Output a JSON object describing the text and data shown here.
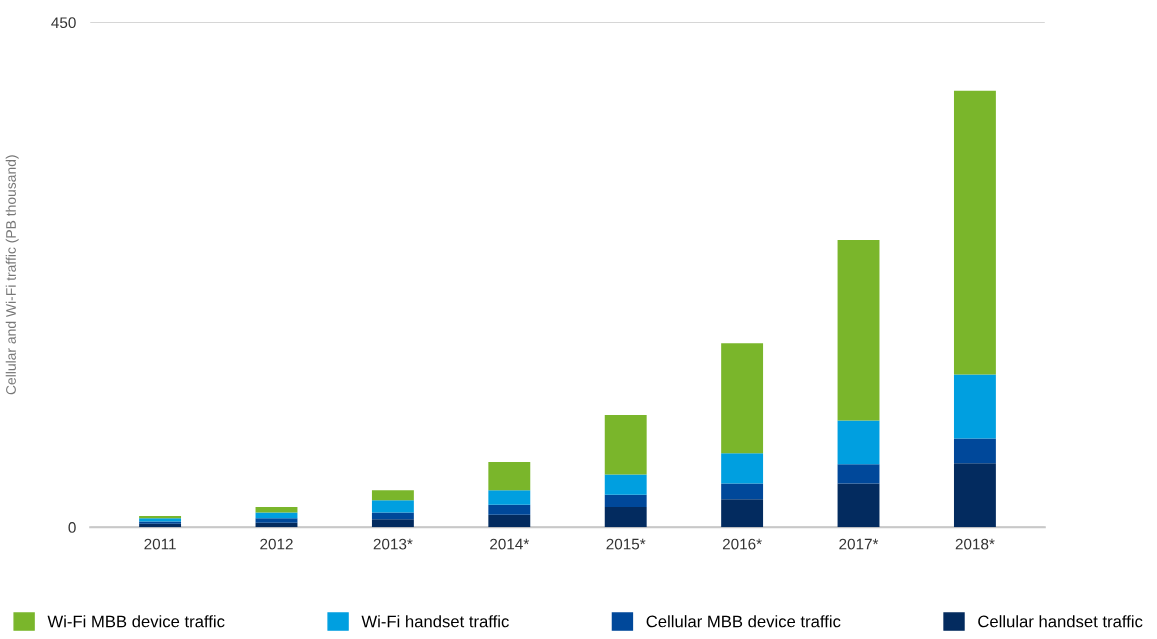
{
  "chart_data": {
    "type": "bar",
    "stacked": true,
    "ylabel": "Cellular and Wi-Fi traffic (PB thousand)",
    "categories": [
      "2011",
      "2012",
      "2013*",
      "2014*",
      "2015*",
      "2016*",
      "2017*",
      "2018*"
    ],
    "series": [
      {
        "name": "Cellular handset traffic",
        "color": "#032b5f",
        "values": [
          3,
          4,
          7,
          11,
          18,
          25,
          39,
          57
        ]
      },
      {
        "name": "Cellular MBB device traffic",
        "color": "#00489a",
        "values": [
          2,
          4,
          6,
          9,
          11,
          14,
          17,
          22
        ]
      },
      {
        "name": "Wi-Fi handset traffic",
        "color": "#009fe0",
        "values": [
          3,
          5,
          11,
          13,
          18,
          27,
          39,
          57
        ]
      },
      {
        "name": "Wi-Fi MBB device traffic",
        "color": "#7ab62b",
        "values": [
          2,
          5,
          9,
          25,
          53,
          98,
          161,
          253
        ]
      }
    ],
    "ylim": [
      0,
      450
    ],
    "yticks": [
      0,
      450
    ],
    "grid": "y",
    "legend": "bottom"
  }
}
